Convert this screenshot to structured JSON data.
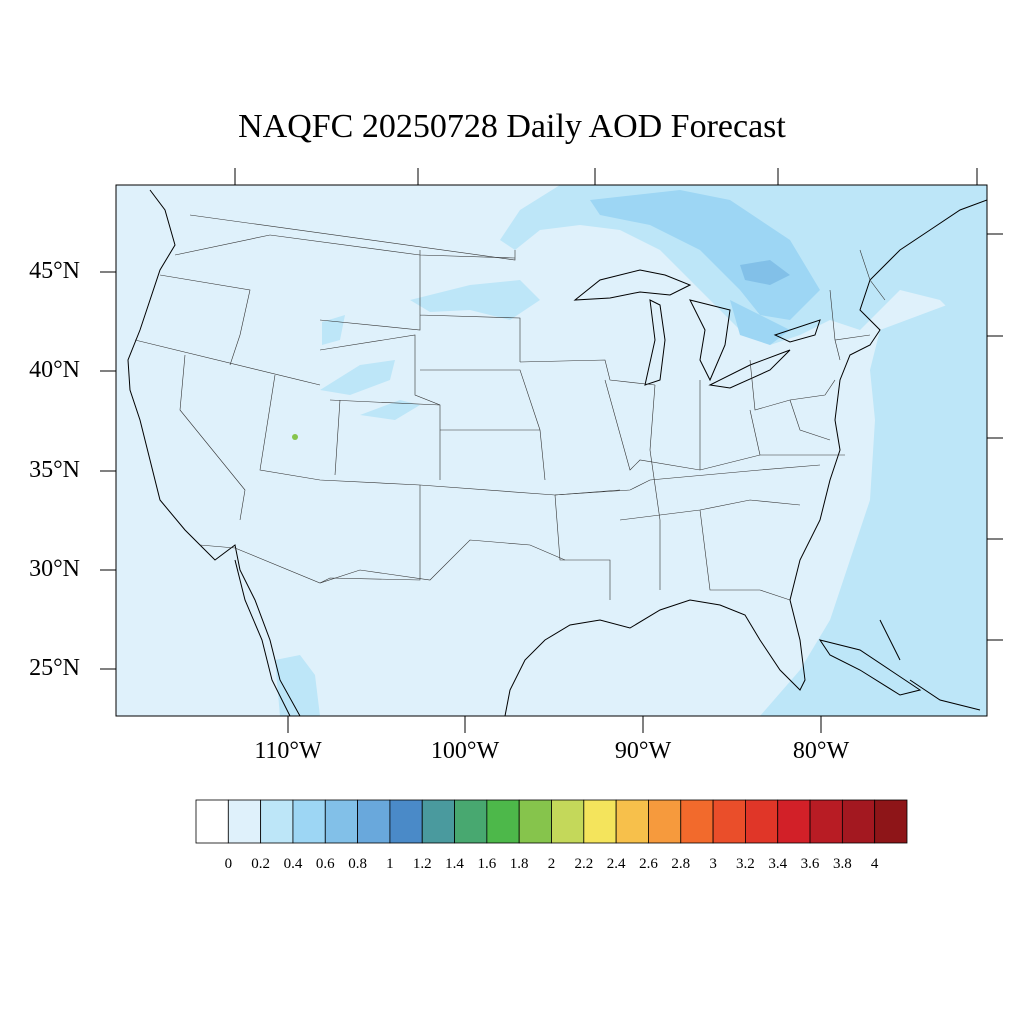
{
  "title": "NAQFC 20250728 Daily AOD Forecast",
  "map": {
    "region": "Contiguous United States",
    "lat_labels": [
      "45°N",
      "40°N",
      "35°N",
      "30°N",
      "25°N"
    ],
    "lon_labels": [
      "110°W",
      "100°W",
      "90°W",
      "80°W"
    ],
    "background_color": "#dff1fb",
    "aod_field_description_values": {
      "background_level": "0.2-0.4",
      "elevated_regions_level": "0.4-0.8"
    }
  },
  "colorbar": {
    "labels": [
      "0",
      "0.2",
      "0.4",
      "0.6",
      "0.8",
      "1",
      "1.2",
      "1.4",
      "1.6",
      "1.8",
      "2",
      "2.2",
      "2.4",
      "2.6",
      "2.8",
      "3",
      "3.2",
      "3.4",
      "3.6",
      "3.8",
      "4"
    ],
    "colors": [
      "#ffffff",
      "#dff1fb",
      "#bde6f8",
      "#9dd6f4",
      "#82c0e8",
      "#69a8dc",
      "#4a8ac8",
      "#4a9a9e",
      "#48a870",
      "#4db84a",
      "#86c44c",
      "#c4d85a",
      "#f4e45c",
      "#f7c04b",
      "#f69a3d",
      "#f26a2c",
      "#ea4e2a",
      "#e03628",
      "#d22028",
      "#b81c24",
      "#a31820",
      "#8e1518"
    ]
  }
}
